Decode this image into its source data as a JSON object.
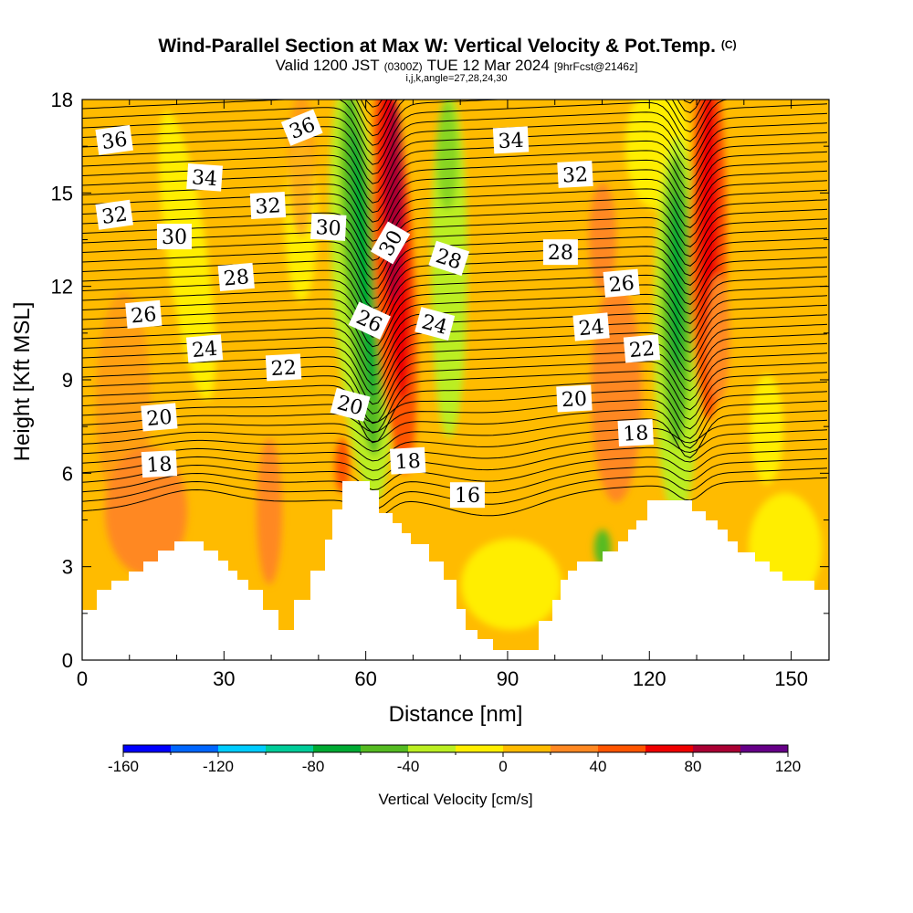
{
  "chart_data": {
    "type": "heatmap",
    "title": "Wind-Parallel Section at Max W: Vertical Velocity & Pot.Temp.",
    "title_mark": "(C)",
    "subtitle_pre": "Valid 1200 JST",
    "subtitle_utc": "(0300Z)",
    "subtitle_main": "TUE 12 Mar 2024",
    "subtitle_fcst": "[9hrFcst@2146z]",
    "subtitle_indices": "i,j,k,angle=27,28,24,30",
    "xlabel": "Distance [nm]",
    "ylabel": "Height [Kft MSL]",
    "xlim": [
      0,
      158
    ],
    "ylim": [
      0,
      18
    ],
    "x_ticks": [
      "0",
      "30",
      "60",
      "90",
      "120",
      "150"
    ],
    "y_ticks": [
      "0",
      "3",
      "6",
      "9",
      "12",
      "15",
      "18"
    ],
    "colorbar": {
      "label": "Vertical Velocity [cm/s]",
      "ticks": [
        "-160",
        "-120",
        "-80",
        "-40",
        "0",
        "40",
        "80",
        "120"
      ],
      "colors": [
        "#0000ff",
        "#0066ff",
        "#00ccff",
        "#00cc99",
        "#00aa33",
        "#55bb22",
        "#bbee22",
        "#ffee00",
        "#ffbb00",
        "#ff8822",
        "#ff5500",
        "#ee0000",
        "#aa0033",
        "#660088"
      ]
    },
    "theta_labels": [
      {
        "text": "36",
        "x": 6.8,
        "y": 16.7,
        "rot": -8
      },
      {
        "text": "36",
        "x": 46.5,
        "y": 17.1,
        "rot": -22
      },
      {
        "text": "34",
        "x": 25.9,
        "y": 15.5,
        "rot": 4
      },
      {
        "text": "34",
        "x": 90.7,
        "y": 16.7,
        "rot": -3
      },
      {
        "text": "32",
        "x": 6.8,
        "y": 14.3,
        "rot": -8
      },
      {
        "text": "32",
        "x": 39.3,
        "y": 14.6,
        "rot": -3
      },
      {
        "text": "32",
        "x": 104.3,
        "y": 15.6,
        "rot": -3
      },
      {
        "text": "30",
        "x": 19.5,
        "y": 13.6,
        "rot": 0
      },
      {
        "text": "30",
        "x": 52.1,
        "y": 13.9,
        "rot": 3
      },
      {
        "text": "30",
        "x": 65.2,
        "y": 13.4,
        "rot": -60
      },
      {
        "text": "28",
        "x": 32.6,
        "y": 12.3,
        "rot": -5
      },
      {
        "text": "28",
        "x": 77.6,
        "y": 12.9,
        "rot": 18
      },
      {
        "text": "28",
        "x": 101.2,
        "y": 13.1,
        "rot": 0
      },
      {
        "text": "26",
        "x": 13.0,
        "y": 11.1,
        "rot": -5
      },
      {
        "text": "26",
        "x": 60.8,
        "y": 10.9,
        "rot": 25
      },
      {
        "text": "26",
        "x": 114.1,
        "y": 12.1,
        "rot": -5
      },
      {
        "text": "24",
        "x": 25.9,
        "y": 10.0,
        "rot": -5
      },
      {
        "text": "24",
        "x": 74.6,
        "y": 10.8,
        "rot": 15
      },
      {
        "text": "24",
        "x": 107.7,
        "y": 10.7,
        "rot": -5
      },
      {
        "text": "22",
        "x": 42.6,
        "y": 9.4,
        "rot": -3
      },
      {
        "text": "22",
        "x": 118.4,
        "y": 10.0,
        "rot": -5
      },
      {
        "text": "20",
        "x": 16.3,
        "y": 7.8,
        "rot": -5
      },
      {
        "text": "20",
        "x": 56.7,
        "y": 8.2,
        "rot": 15
      },
      {
        "text": "20",
        "x": 104.1,
        "y": 8.4,
        "rot": -3
      },
      {
        "text": "18",
        "x": 16.3,
        "y": 6.3,
        "rot": -3
      },
      {
        "text": "18",
        "x": 68.9,
        "y": 6.4,
        "rot": -3
      },
      {
        "text": "18",
        "x": 117.1,
        "y": 7.3,
        "rot": -3
      },
      {
        "text": "16",
        "x": 81.5,
        "y": 5.3,
        "rot": 0
      }
    ]
  }
}
